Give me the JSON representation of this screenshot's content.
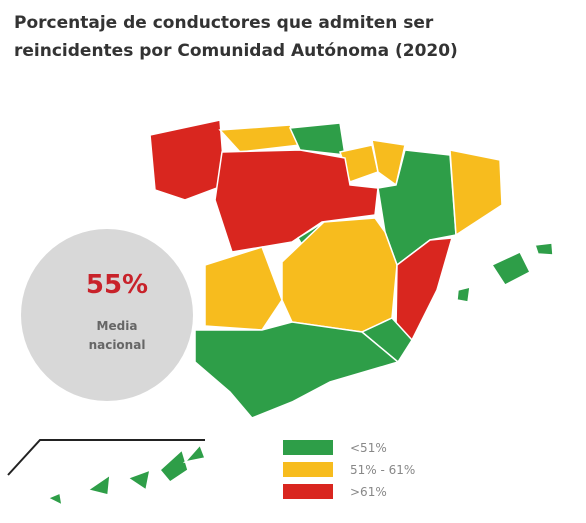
{
  "header": {
    "title_lines": [
      "Porcentaje de conductores que admiten ser",
      "reincidentes por Comunidad Autónoma (2020)"
    ]
  },
  "national_average": {
    "value_label": "55%",
    "caption_lines": [
      "Media",
      "nacional"
    ]
  },
  "legend": [
    {
      "label": "<51%",
      "color": "#2e9e48"
    },
    {
      "label": "51% - 61%",
      "color": "#f7bc1e"
    },
    {
      "label": ">61%",
      "color": "#d9261f"
    }
  ]
}
